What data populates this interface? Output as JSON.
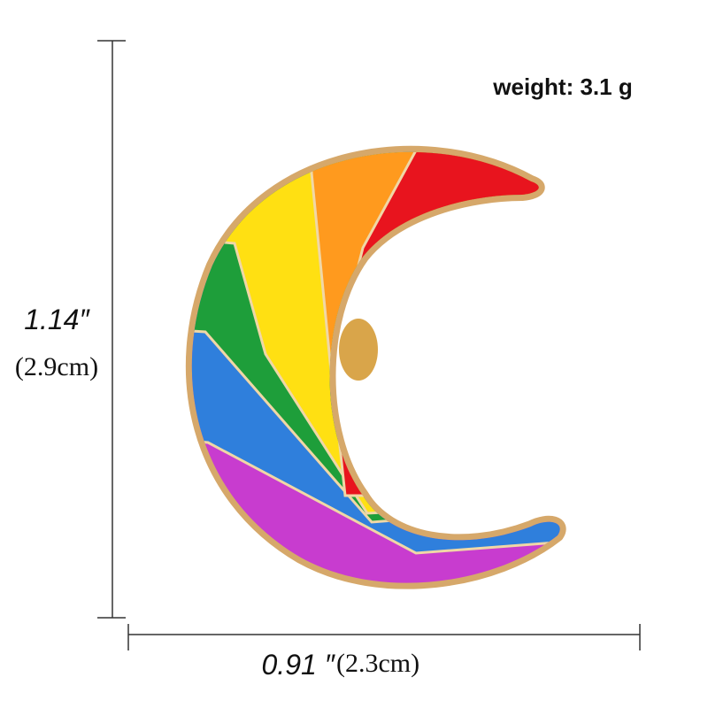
{
  "weight": "weight: 3.1 g",
  "height": {
    "inches": "1.14″",
    "cm": "(2.9cm)"
  },
  "width": {
    "inches": "0.91 ″",
    "cm": "(2.3cm)"
  }
}
